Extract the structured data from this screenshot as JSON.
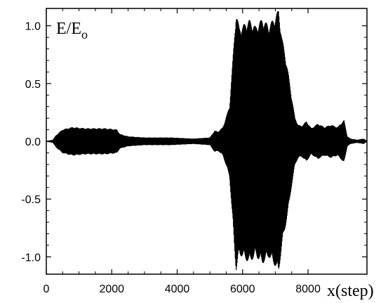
{
  "chart_data": {
    "type": "line",
    "title": "",
    "ylabel": "E/E",
    "ylabel_subscript": "o",
    "xlabel": "x(step)",
    "xlim": [
      0,
      9800
    ],
    "ylim": [
      -1.15,
      1.15
    ],
    "x_ticks": [
      0,
      2000,
      4000,
      6000,
      8000
    ],
    "x_tick_labels": [
      "0",
      "2000",
      "4000",
      "6000",
      "8000"
    ],
    "y_ticks": [
      -1.0,
      -0.5,
      0.0,
      0.5,
      1.0
    ],
    "y_tick_labels": [
      "-1.0",
      "-0.5",
      "0.0",
      "0.5",
      "1.0"
    ],
    "grid": false,
    "series": [
      {
        "description": "oscillation envelope amplitude |E/Eo| vs step (signal fills between +amp and -amp)",
        "x": [
          0,
          200,
          300,
          500,
          800,
          1200,
          1800,
          2150,
          2250,
          2500,
          3000,
          3800,
          4500,
          5000,
          5150,
          5250,
          5400,
          5600,
          5700,
          5800,
          5900,
          6000,
          6200,
          6400,
          6600,
          6800,
          7000,
          7100,
          7200,
          7300,
          7400,
          7500,
          7600,
          7700,
          7800,
          7950,
          8100,
          8300,
          8500,
          8700,
          8900,
          9100,
          9200,
          9300,
          9500,
          9700,
          9800
        ],
        "amp": [
          0.0,
          0.01,
          0.05,
          0.1,
          0.12,
          0.11,
          0.11,
          0.1,
          0.06,
          0.04,
          0.03,
          0.03,
          0.02,
          0.03,
          0.09,
          0.08,
          0.12,
          0.3,
          0.7,
          1.12,
          0.98,
          1.0,
          1.05,
          0.99,
          1.06,
          1.0,
          1.08,
          1.14,
          0.9,
          0.75,
          0.58,
          0.38,
          0.2,
          0.14,
          0.13,
          0.17,
          0.11,
          0.15,
          0.12,
          0.14,
          0.12,
          0.18,
          0.04,
          0.02,
          0.01,
          0.02,
          0.0
        ]
      }
    ]
  }
}
